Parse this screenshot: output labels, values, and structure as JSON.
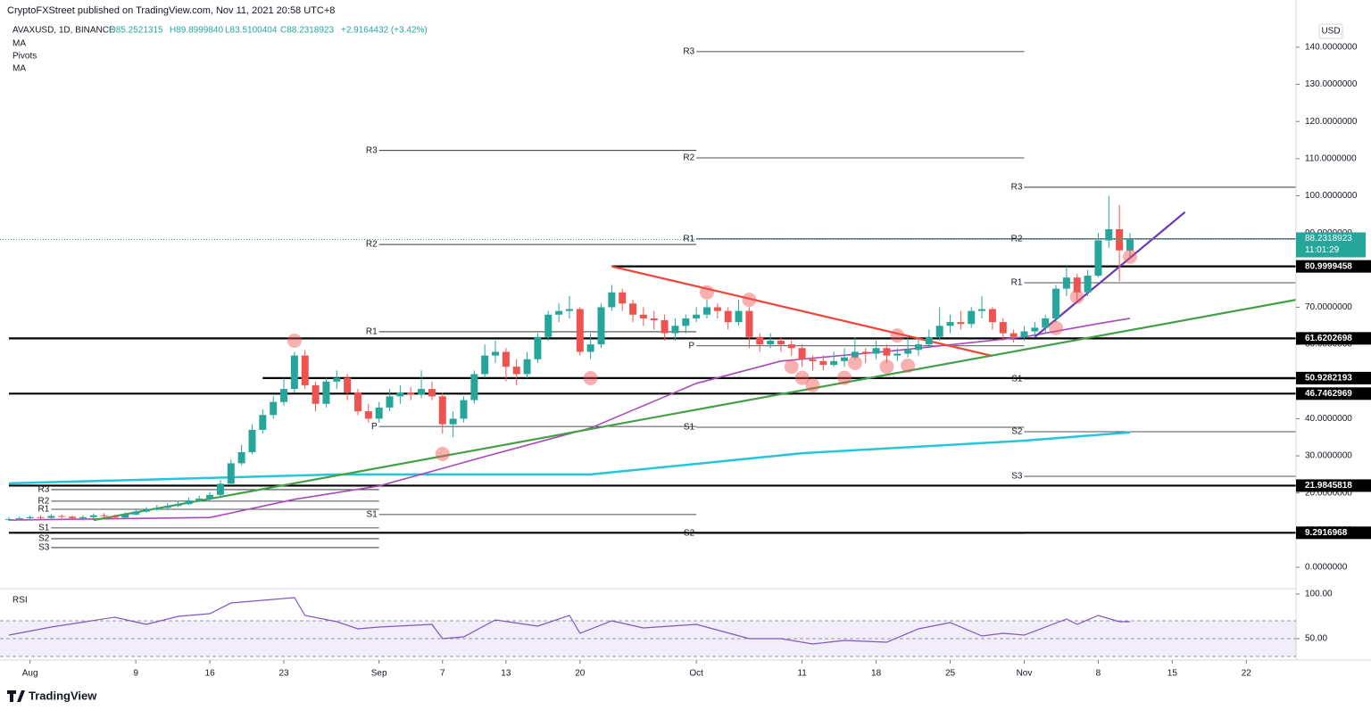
{
  "header": {
    "publisher": "CryptoFXStreet published on TradingView.com, Nov 11, 2021 20:58 UTC+8",
    "symbol": "AVAXUSD, 1D, BINANCE",
    "open": "O85.2521315",
    "high": "H89.8999840",
    "low": "L83.5100404",
    "close": "C88.2318923",
    "change": "+2.9164432 (+3.42%)",
    "indicators": [
      "MA",
      "Pivots",
      "MA"
    ],
    "currency": "USD",
    "countdown": "11:01:29",
    "brand": "TradingView"
  },
  "chart_data": {
    "type": "candlestick",
    "up_color": "#26a69a",
    "down_color": "#ef5350",
    "open": [
      12.8,
      13.0,
      13.2,
      13.5,
      13.3,
      13.8,
      13.6,
      13.2,
      13.5,
      14.0,
      13.8,
      13.4,
      14.2,
      15.0,
      15.5,
      16.0,
      16.5,
      17.0,
      18.0,
      18.5,
      19.5,
      22.5,
      28.0,
      31.0,
      37.0,
      41.0,
      44.5,
      48.0,
      57.0,
      49.0,
      44.0,
      50.0,
      51.0,
      47.0,
      42.0,
      40.0,
      43.0,
      46.0,
      47.0,
      46.5,
      48.0,
      46.0,
      38.5,
      40.0,
      45.0,
      52.0,
      57.0,
      58.0,
      54.0,
      52.0,
      56.0,
      62.0,
      68.0,
      69.0,
      69.5,
      58.0,
      60.0,
      70.0,
      74.0,
      71.0,
      68.0,
      67.0,
      66.5,
      63.0,
      65.0,
      67.0,
      68.0,
      70.0,
      69.0,
      66.0,
      69.0,
      62.0,
      60.0,
      61.0,
      60.0,
      59.0,
      56.0,
      55.5,
      54.5,
      55.5,
      56.5,
      58.0,
      57.5,
      59.0,
      57.0,
      57.5,
      58.5,
      60.0,
      62.0,
      65.0,
      66.0,
      65.5,
      69.0,
      69.5,
      66.0,
      63.0,
      62.0,
      63.5,
      64.5,
      67.0,
      75.0,
      78.0,
      74.0,
      78.5,
      88.0,
      91.0,
      85.2521315
    ],
    "high": [
      13.5,
      13.7,
      14.0,
      14.0,
      14.3,
      14.2,
      14.0,
      14.0,
      14.5,
      14.6,
      14.2,
      14.8,
      15.6,
      16.2,
      16.8,
      17.3,
      17.8,
      18.8,
      19.3,
      20.3,
      23.5,
      29.0,
      33.0,
      38.5,
      42.5,
      46.0,
      51.0,
      58.0,
      58.5,
      50.0,
      51.0,
      53.0,
      52.0,
      48.0,
      44.0,
      44.5,
      48.0,
      49.0,
      48.5,
      53.0,
      50.0,
      47.0,
      42.0,
      46.0,
      53.0,
      60.0,
      61.0,
      59.0,
      56.0,
      58.0,
      63.0,
      69.0,
      71.0,
      73.0,
      70.0,
      63.0,
      71.0,
      76.0,
      75.0,
      72.0,
      70.0,
      69.0,
      68.0,
      67.0,
      68.0,
      70.0,
      72.0,
      71.0,
      70.0,
      72.0,
      70.0,
      63.0,
      63.0,
      62.0,
      61.0,
      60.0,
      57.0,
      57.0,
      58.0,
      59.0,
      62.0,
      59.0,
      61.0,
      60.0,
      59.0,
      62.0,
      61.5,
      64.0,
      70.0,
      68.0,
      69.0,
      70.0,
      73.0,
      70.0,
      67.0,
      64.0,
      65.0,
      66.0,
      68.0,
      76.0,
      81.0,
      79.0,
      80.0,
      90.0,
      100.0,
      97.5,
      89.899984
    ],
    "low": [
      12.5,
      12.7,
      12.9,
      12.9,
      13.0,
      13.2,
      12.8,
      12.9,
      13.2,
      13.4,
      13.0,
      13.2,
      14.0,
      14.7,
      15.2,
      15.7,
      16.2,
      16.8,
      17.6,
      18.0,
      19.0,
      22.0,
      27.5,
      30.5,
      36.0,
      40.0,
      43.5,
      47.0,
      48.0,
      42.0,
      43.0,
      48.0,
      45.0,
      41.0,
      39.0,
      39.0,
      42.0,
      44.0,
      45.0,
      45.5,
      45.0,
      36.0,
      35.0,
      39.0,
      44.0,
      51.0,
      55.0,
      50.0,
      49.0,
      51.0,
      55.0,
      61.0,
      66.0,
      67.0,
      57.0,
      56.0,
      59.0,
      69.0,
      69.0,
      66.0,
      65.0,
      64.0,
      61.0,
      61.0,
      63.0,
      66.0,
      67.0,
      67.0,
      64.0,
      65.0,
      59.0,
      58.0,
      59.0,
      58.0,
      57.0,
      54.0,
      53.0,
      53.0,
      54.0,
      54.0,
      56.0,
      55.0,
      56.0,
      55.0,
      55.5,
      56.5,
      57.0,
      59.0,
      61.0,
      63.0,
      64.0,
      64.5,
      67.0,
      64.0,
      61.0,
      60.5,
      61.0,
      62.0,
      63.0,
      66.0,
      73.0,
      72.0,
      73.0,
      78.0,
      86.0,
      77.0,
      83.5100404
    ],
    "close": [
      13.0,
      13.2,
      13.5,
      13.3,
      13.8,
      13.6,
      13.2,
      13.5,
      14.0,
      13.8,
      13.4,
      14.2,
      15.0,
      15.5,
      16.0,
      16.5,
      17.0,
      18.0,
      18.5,
      19.5,
      22.5,
      28.0,
      31.0,
      37.0,
      41.0,
      44.5,
      48.0,
      57.0,
      49.0,
      44.0,
      50.0,
      51.0,
      47.0,
      42.0,
      40.0,
      43.0,
      46.0,
      47.0,
      46.5,
      48.0,
      46.0,
      38.5,
      40.0,
      45.0,
      52.0,
      57.0,
      58.0,
      54.0,
      52.0,
      56.0,
      62.0,
      68.0,
      69.0,
      69.5,
      58.0,
      60.0,
      70.0,
      74.0,
      71.0,
      68.0,
      67.0,
      66.5,
      63.0,
      65.0,
      67.0,
      68.0,
      70.0,
      69.0,
      66.0,
      69.0,
      62.0,
      60.0,
      61.0,
      60.0,
      59.0,
      56.0,
      55.5,
      54.5,
      55.5,
      56.5,
      58.0,
      57.5,
      59.0,
      57.0,
      57.5,
      58.5,
      60.0,
      62.0,
      65.0,
      66.0,
      65.5,
      69.0,
      69.5,
      66.0,
      63.0,
      62.0,
      63.5,
      64.5,
      67.0,
      75.0,
      78.0,
      74.0,
      78.5,
      88.0,
      91.0,
      85.3,
      88.2318923
    ],
    "xlim": [
      -0.84,
      121.7
    ],
    "xticks": [
      {
        "value": 2,
        "label": "Aug"
      },
      {
        "value": 12,
        "label": "9"
      },
      {
        "value": 19,
        "label": "16"
      },
      {
        "value": 26,
        "label": "23"
      },
      {
        "value": 35,
        "label": "Sep"
      },
      {
        "value": 41,
        "label": "7"
      },
      {
        "value": 47,
        "label": "13"
      },
      {
        "value": 54,
        "label": "20"
      },
      {
        "value": 65,
        "label": "Oct"
      },
      {
        "value": 75,
        "label": "11"
      },
      {
        "value": 82,
        "label": "18"
      },
      {
        "value": 89,
        "label": "25"
      },
      {
        "value": 96,
        "label": "Nov"
      },
      {
        "value": 103,
        "label": "8"
      },
      {
        "value": 110,
        "label": "15"
      },
      {
        "value": 117,
        "label": "22"
      }
    ],
    "ylim": [
      -5.76,
      152.7
    ],
    "yticks": [
      {
        "value": 0,
        "label": "0.0000000"
      },
      {
        "value": 10,
        "label": "10.0000000"
      },
      {
        "value": 20,
        "label": "20.0000000"
      },
      {
        "value": 30,
        "label": "30.0000000"
      },
      {
        "value": 40,
        "label": "40.0000000"
      },
      {
        "value": 50,
        "label": "50.0000000"
      },
      {
        "value": 60,
        "label": "60.0000000"
      },
      {
        "value": 70,
        "label": "70.0000000"
      },
      {
        "value": 80,
        "label": "80.0000000"
      },
      {
        "value": 90,
        "label": "90.0000000"
      },
      {
        "value": 100,
        "label": "100.0000000"
      },
      {
        "value": 110,
        "label": "110.0000000"
      },
      {
        "value": 120,
        "label": "120.0000000"
      },
      {
        "value": 130,
        "label": "130.0000000"
      },
      {
        "value": 140,
        "label": "140.0000000"
      }
    ],
    "levels": [
      {
        "value": 80.9999458,
        "start": 57
      },
      {
        "value": 61.6202698,
        "start": 0
      },
      {
        "value": 50.9282193,
        "start": 24
      },
      {
        "value": 46.7462969,
        "start": 0
      },
      {
        "value": 21.9845818,
        "start": 0
      },
      {
        "value": 9.2916968,
        "start": 0
      }
    ],
    "pivots": [
      {
        "start": 4,
        "end": 35,
        "levels": [
          {
            "label": "R3",
            "value": 20.9
          },
          {
            "label": "R2",
            "value": 17.8
          },
          {
            "label": "R1",
            "value": 15.6
          },
          {
            "label": "S1",
            "value": 10.6
          },
          {
            "label": "S2",
            "value": 7.7
          },
          {
            "label": "S3",
            "value": 5.3
          }
        ]
      },
      {
        "start": 35,
        "end": 65,
        "levels": [
          {
            "label": "R3",
            "value": 112.2
          },
          {
            "label": "R2",
            "value": 86.9
          },
          {
            "label": "R1",
            "value": 63.4
          },
          {
            "label": "P",
            "value": 37.9
          },
          {
            "label": "S1",
            "value": 14.2
          }
        ]
      },
      {
        "start": 65,
        "end": 96,
        "levels": [
          {
            "label": "R3",
            "value": 138.8
          },
          {
            "label": "R2",
            "value": 110.2
          },
          {
            "label": "R1",
            "value": 88.4
          },
          {
            "label": "P",
            "value": 59.6
          },
          {
            "label": "S1",
            "value": 37.7
          },
          {
            "label": "S2",
            "value": 9.1
          }
        ]
      },
      {
        "start": 96,
        "end": 122,
        "levels": [
          {
            "label": "R3",
            "value": 102.3
          },
          {
            "label": "R2",
            "value": 88.4
          },
          {
            "label": "R1",
            "value": 76.6
          },
          {
            "label": "S1",
            "value": 50.7
          },
          {
            "label": "S2",
            "value": 36.5
          },
          {
            "label": "S3",
            "value": 24.5
          }
        ]
      }
    ],
    "moving_averages": [
      {
        "color": "#26c6da",
        "x": [
          0,
          31,
          55,
          75,
          96,
          106
        ],
        "values": [
          22.6,
          25,
          25,
          30.7,
          34.1,
          36.3
        ]
      },
      {
        "color": "#ab47bc",
        "x": [
          0,
          19,
          27,
          35,
          45,
          55,
          65,
          73,
          84,
          96,
          103,
          106
        ],
        "values": [
          12.7,
          13.4,
          18.3,
          21.9,
          29.8,
          37.5,
          49.5,
          55.5,
          58.4,
          62.0,
          65.6,
          67.0
        ]
      }
    ],
    "trendlines": [
      {
        "color": "#f44336",
        "start": [
          57,
          81
        ],
        "end": [
          93,
          56.9
        ]
      },
      {
        "color": "#43a047",
        "start": [
          8,
          12.7
        ],
        "end": [
          121.7,
          72.0
        ]
      },
      {
        "color": "#673ab7",
        "start": [
          97,
          62
        ],
        "end": [
          111.2,
          95.6
        ]
      }
    ],
    "highlights": [
      [
        27,
        61
      ],
      [
        41,
        30.5
      ],
      [
        55,
        50.9
      ],
      [
        66,
        74
      ],
      [
        70,
        72
      ],
      [
        74,
        54
      ],
      [
        75,
        51
      ],
      [
        76,
        49
      ],
      [
        79,
        51
      ],
      [
        80,
        55
      ],
      [
        83,
        54
      ],
      [
        84,
        62.4
      ],
      [
        85,
        54.3
      ],
      [
        99,
        64.4
      ],
      [
        101,
        72.8
      ],
      [
        106,
        83.6
      ]
    ],
    "rsi": {
      "title": "RSI",
      "color": "#7e57c2",
      "ylim": [
        26,
        106
      ],
      "yticks": [
        {
          "value": 100,
          "label": "100.00"
        },
        {
          "value": 50,
          "label": "50.00"
        }
      ],
      "bands": [
        30,
        70
      ],
      "x": [
        0,
        4,
        10,
        13,
        16,
        19,
        21,
        27,
        28,
        31,
        33,
        35,
        40,
        41,
        43,
        46,
        50,
        53,
        54,
        57,
        60,
        65,
        70,
        73,
        76,
        79,
        83,
        86,
        89,
        92,
        94,
        96,
        100,
        101,
        103,
        105,
        106
      ],
      "values": [
        54,
        63,
        74,
        66,
        75,
        78,
        90,
        96,
        76,
        69,
        61,
        63,
        66,
        50,
        52,
        71,
        64,
        76,
        56,
        70,
        62,
        66,
        50,
        50,
        44,
        48,
        46,
        61,
        68,
        53,
        56,
        54,
        72,
        66,
        76,
        69,
        69
      ]
    }
  }
}
